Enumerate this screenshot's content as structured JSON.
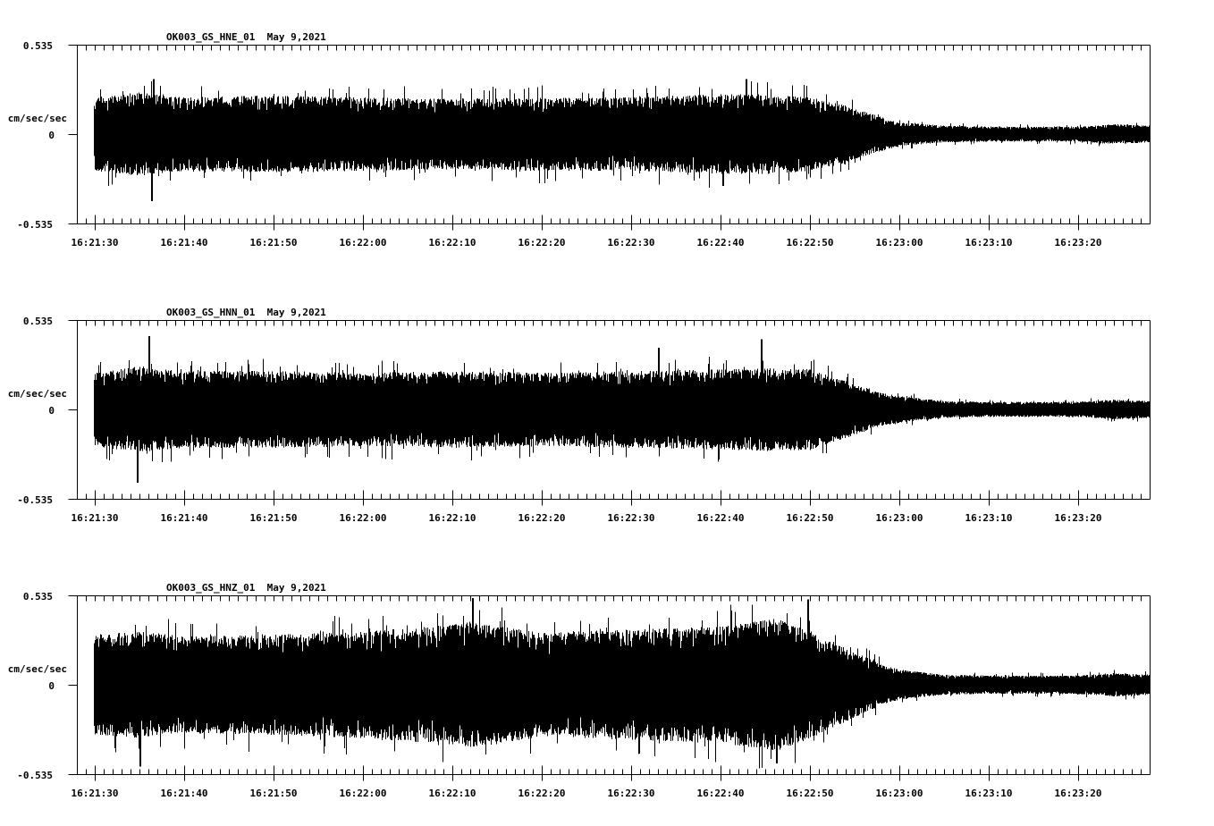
{
  "chart_data": [
    {
      "type": "line",
      "title": "OK003_GS_HNE_01  May 9,2021",
      "station": "OK003_GS_HNE_01",
      "date": "May 9,2021",
      "ylabel": "cm/sec/sec",
      "ylim": [
        -0.535,
        0.535
      ],
      "yticks": [
        "0.535",
        "0",
        "-0.535"
      ],
      "xlabel": "",
      "xticks": [
        "16:21:30",
        "16:21:40",
        "16:21:50",
        "16:22:00",
        "16:22:10",
        "16:22:20",
        "16:22:30",
        "16:22:40",
        "16:22:50",
        "16:23:00",
        "16:23:10",
        "16:23:20"
      ],
      "x_range": [
        "16:21:28",
        "16:23:28"
      ],
      "grid": false,
      "envelope": {
        "time_s": [
          0,
          5,
          10,
          20,
          30,
          40,
          50,
          60,
          70,
          75,
          80,
          84,
          88,
          90,
          95,
          100,
          110,
          114,
          118
        ],
        "amplitude": [
          0.22,
          0.25,
          0.22,
          0.23,
          0.22,
          0.21,
          0.22,
          0.22,
          0.24,
          0.24,
          0.22,
          0.17,
          0.1,
          0.07,
          0.05,
          0.045,
          0.045,
          0.06,
          0.05
        ]
      },
      "peaks": [
        {
          "time_s": 6.3,
          "value": -0.4
        },
        {
          "time_s": 6.5,
          "value": 0.33
        },
        {
          "time_s": 72.8,
          "value": 0.33
        },
        {
          "time_s": 70.2,
          "value": -0.31
        }
      ]
    },
    {
      "type": "line",
      "title": "OK003_GS_HNN_01  May 9,2021",
      "station": "OK003_GS_HNN_01",
      "date": "May 9,2021",
      "ylabel": "cm/sec/sec",
      "ylim": [
        -0.535,
        0.535
      ],
      "yticks": [
        "0.535",
        "0",
        "-0.535"
      ],
      "xlabel": "",
      "xticks": [
        "16:21:30",
        "16:21:40",
        "16:21:50",
        "16:22:00",
        "16:22:10",
        "16:22:20",
        "16:22:30",
        "16:22:40",
        "16:22:50",
        "16:23:00",
        "16:23:10",
        "16:23:20"
      ],
      "x_range": [
        "16:21:28",
        "16:23:28"
      ],
      "grid": false,
      "envelope": {
        "time_s": [
          0,
          5,
          10,
          20,
          30,
          40,
          50,
          60,
          70,
          75,
          80,
          84,
          88,
          90,
          95,
          100,
          110,
          114,
          118
        ],
        "amplitude": [
          0.22,
          0.26,
          0.23,
          0.23,
          0.22,
          0.23,
          0.22,
          0.23,
          0.24,
          0.25,
          0.24,
          0.17,
          0.1,
          0.08,
          0.05,
          0.045,
          0.045,
          0.06,
          0.05
        ]
      },
      "peaks": [
        {
          "time_s": 6.0,
          "value": 0.44
        },
        {
          "time_s": 4.7,
          "value": -0.44
        },
        {
          "time_s": 74.5,
          "value": 0.42
        },
        {
          "time_s": 63.0,
          "value": 0.37
        }
      ]
    },
    {
      "type": "line",
      "title": "OK003_GS_HNZ_01  May 9,2021",
      "station": "OK003_GS_HNZ_01",
      "date": "May 9,2021",
      "ylabel": "cm/sec/sec",
      "ylim": [
        -0.535,
        0.535
      ],
      "yticks": [
        "0.535",
        "0",
        "-0.535"
      ],
      "xlabel": "",
      "xticks": [
        "16:21:30",
        "16:21:40",
        "16:21:50",
        "16:22:00",
        "16:22:10",
        "16:22:20",
        "16:22:30",
        "16:22:40",
        "16:22:50",
        "16:23:00",
        "16:23:10",
        "16:23:20"
      ],
      "x_range": [
        "16:21:28",
        "16:23:28"
      ],
      "grid": false,
      "envelope": {
        "time_s": [
          0,
          5,
          10,
          20,
          30,
          40,
          42,
          50,
          60,
          70,
          76,
          80,
          84,
          88,
          90,
          95,
          100,
          110,
          114,
          118
        ],
        "amplitude": [
          0.3,
          0.32,
          0.29,
          0.3,
          0.32,
          0.36,
          0.38,
          0.31,
          0.33,
          0.35,
          0.4,
          0.32,
          0.22,
          0.12,
          0.09,
          0.06,
          0.055,
          0.055,
          0.07,
          0.06
        ]
      },
      "peaks": [
        {
          "time_s": 42.2,
          "value": 0.52
        },
        {
          "time_s": 79.7,
          "value": 0.51
        },
        {
          "time_s": 5.0,
          "value": -0.49
        },
        {
          "time_s": 76.2,
          "value": -0.47
        }
      ]
    }
  ]
}
